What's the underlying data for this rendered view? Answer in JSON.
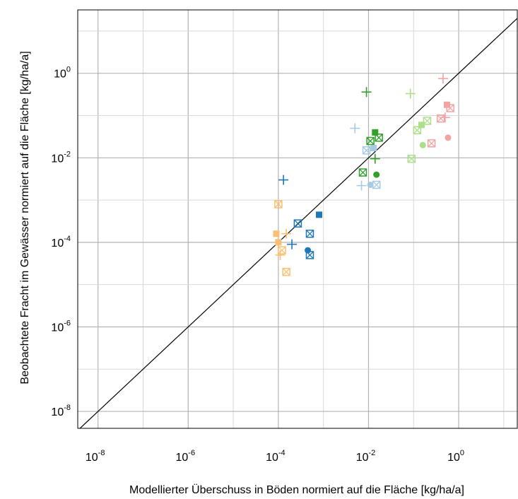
{
  "chart_data": {
    "type": "scatter",
    "title": "",
    "xlabel": "Modellierter Überschuss in Böden normiert auf die Fläche [kg/ha/a]",
    "ylabel": "Beobachtete Fracht im Gewässer normiert auf die Fläche [kg/ha/a]",
    "xscale": "log",
    "yscale": "log",
    "xlim_log10": [
      -8.45,
      1.3
    ],
    "ylim_log10": [
      -8.4,
      1.5
    ],
    "x_major_ticks_log10": [
      -8,
      -6,
      -4,
      -2,
      0
    ],
    "y_major_ticks_log10": [
      -8,
      -6,
      -4,
      -2,
      0
    ],
    "x_tick_labels": [
      "10",
      "10",
      "10",
      "10",
      "10"
    ],
    "x_tick_exponents": [
      "-8",
      "-6",
      "-4",
      "-2",
      "0"
    ],
    "y_tick_labels": [
      "10",
      "10",
      "10",
      "10",
      "10"
    ],
    "y_tick_exponents": [
      "-8",
      "-6",
      "-4",
      "-2",
      "0"
    ],
    "grid": true,
    "legend": "none",
    "reference_line": "y = x",
    "marker_types": [
      "plus",
      "square-filled",
      "square-cross",
      "circle-filled"
    ],
    "series": [
      {
        "color": "#f4a3a3",
        "points": [
          {
            "x": 0.45,
            "y": 0.75,
            "m": "plus"
          },
          {
            "x": 0.55,
            "y": 0.18,
            "m": "square-filled"
          },
          {
            "x": 0.65,
            "y": 0.15,
            "m": "square-cross"
          },
          {
            "x": 0.4,
            "y": 0.085,
            "m": "square-cross"
          },
          {
            "x": 0.5,
            "y": 0.09,
            "m": "plus"
          },
          {
            "x": 0.25,
            "y": 0.022,
            "m": "square-cross"
          },
          {
            "x": 0.58,
            "y": 0.03,
            "m": "circle-filled"
          }
        ]
      },
      {
        "color": "#addf8a",
        "points": [
          {
            "x": 0.085,
            "y": 0.33,
            "m": "plus"
          },
          {
            "x": 0.2,
            "y": 0.075,
            "m": "square-cross"
          },
          {
            "x": 0.15,
            "y": 0.06,
            "m": "square-filled"
          },
          {
            "x": 0.12,
            "y": 0.045,
            "m": "square-cross"
          },
          {
            "x": 0.16,
            "y": 0.02,
            "m": "circle-filled"
          },
          {
            "x": 0.09,
            "y": 0.0095,
            "m": "square-cross"
          }
        ]
      },
      {
        "color": "#33a02c",
        "points": [
          {
            "x": 0.009,
            "y": 0.36,
            "m": "plus"
          },
          {
            "x": 0.014,
            "y": 0.04,
            "m": "square-filled"
          },
          {
            "x": 0.017,
            "y": 0.03,
            "m": "square-cross"
          },
          {
            "x": 0.011,
            "y": 0.025,
            "m": "square-cross"
          },
          {
            "x": 0.014,
            "y": 0.0095,
            "m": "plus"
          },
          {
            "x": 0.0075,
            "y": 0.0045,
            "m": "square-cross"
          },
          {
            "x": 0.015,
            "y": 0.004,
            "m": "circle-filled"
          }
        ]
      },
      {
        "color": "#a6cbe3",
        "points": [
          {
            "x": 0.005,
            "y": 0.05,
            "m": "plus"
          },
          {
            "x": 0.013,
            "y": 0.017,
            "m": "square-filled"
          },
          {
            "x": 0.009,
            "y": 0.015,
            "m": "square-cross"
          },
          {
            "x": 0.007,
            "y": 0.0022,
            "m": "plus"
          },
          {
            "x": 0.015,
            "y": 0.0023,
            "m": "square-cross"
          },
          {
            "x": 0.011,
            "y": 0.0023,
            "m": "circle-filled"
          }
        ]
      },
      {
        "color": "#1f78b4",
        "points": [
          {
            "x": 0.00013,
            "y": 0.003,
            "m": "plus"
          },
          {
            "x": 0.0008,
            "y": 0.00045,
            "m": "square-filled"
          },
          {
            "x": 0.00027,
            "y": 0.00028,
            "m": "square-cross"
          },
          {
            "x": 0.0005,
            "y": 0.00016,
            "m": "square-cross"
          },
          {
            "x": 0.0002,
            "y": 9e-05,
            "m": "plus"
          },
          {
            "x": 0.00045,
            "y": 6.5e-05,
            "m": "circle-filled"
          },
          {
            "x": 0.0005,
            "y": 5e-05,
            "m": "square-cross"
          }
        ]
      },
      {
        "color": "#fdbf6f",
        "points": [
          {
            "x": 0.0001,
            "y": 0.0008,
            "m": "square-cross"
          },
          {
            "x": 9e-05,
            "y": 0.00016,
            "m": "square-filled"
          },
          {
            "x": 0.00015,
            "y": 0.00016,
            "m": "plus"
          },
          {
            "x": 0.0001,
            "y": 0.0001,
            "m": "square-filled"
          },
          {
            "x": 0.00012,
            "y": 6.5e-05,
            "m": "square-cross"
          },
          {
            "x": 0.00011,
            "y": 5e-05,
            "m": "plus"
          },
          {
            "x": 0.00015,
            "y": 2e-05,
            "m": "square-cross"
          }
        ]
      }
    ]
  }
}
